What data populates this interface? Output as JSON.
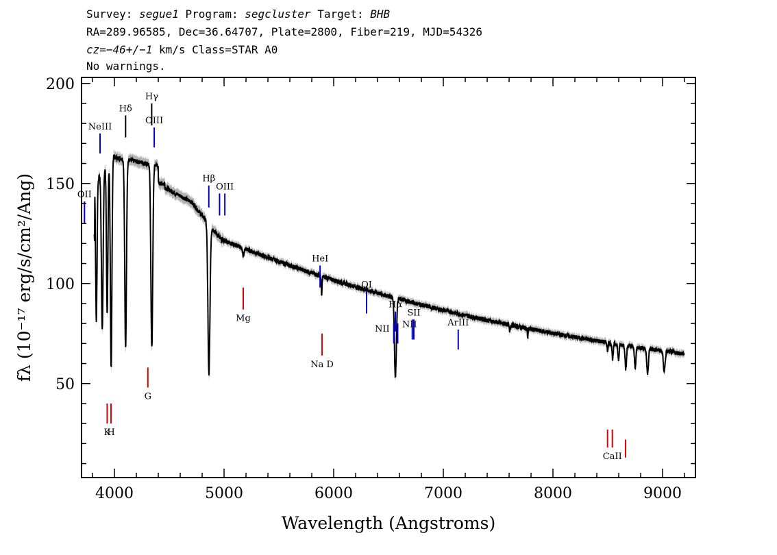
{
  "header": {
    "survey_label": "Survey:",
    "survey": "segue1",
    "program_label": "Program:",
    "program": "segcluster",
    "target_label": "Target:",
    "target": "BHB",
    "line2": "RA=289.96585, Dec=36.64707, Plate=2800, Fiber=219, MJD=54326",
    "cz_label": "cz=",
    "cz_value": "−46+/−1",
    "cz_rest": " km/s Class=STAR A0",
    "line4": "No warnings."
  },
  "chart_data": {
    "type": "line",
    "xlabel": "Wavelength (Angstroms)",
    "ylabel": "fλ (10⁻¹⁷ erg/s/cm²/Ang)",
    "xlim": [
      3700,
      9300
    ],
    "ylim": [
      3,
      203
    ],
    "x_ticks": [
      4000,
      5000,
      6000,
      7000,
      8000,
      9000
    ],
    "y_ticks": [
      50,
      100,
      150,
      200
    ],
    "line_color": "#000000",
    "error_color": "#b0b0b0",
    "emission_color": "#0000cc",
    "absorption_color": "#dd0000",
    "absorption_features": [
      {
        "center": 3835,
        "depth": 70,
        "width": 9
      },
      {
        "center": 3889,
        "depth": 78,
        "width": 11
      },
      {
        "center": 3934,
        "depth": 75,
        "width": 9
      },
      {
        "center": 3970,
        "depth": 105,
        "width": 10
      },
      {
        "center": 4102,
        "depth": 95,
        "width": 11
      },
      {
        "center": 4341,
        "depth": 92,
        "width": 12
      },
      {
        "center": 4862,
        "depth": 75,
        "width": 13
      },
      {
        "center": 5175,
        "depth": 4,
        "width": 10
      },
      {
        "center": 5890,
        "depth": 10,
        "width": 5
      },
      {
        "center": 6563,
        "depth": 40,
        "width": 12
      },
      {
        "center": 7605,
        "depth": 3,
        "width": 6
      },
      {
        "center": 7770,
        "depth": 5,
        "width": 4
      },
      {
        "center": 8498,
        "depth": 4,
        "width": 6
      },
      {
        "center": 8545,
        "depth": 8,
        "width": 8
      },
      {
        "center": 8598,
        "depth": 8,
        "width": 8
      },
      {
        "center": 8665,
        "depth": 12,
        "width": 9
      },
      {
        "center": 8750,
        "depth": 10,
        "width": 10
      },
      {
        "center": 8863,
        "depth": 12,
        "width": 11
      },
      {
        "center": 9015,
        "depth": 10,
        "width": 12
      }
    ],
    "line_markers": [
      {
        "label": "OII",
        "x": 3727,
        "y_top": 141,
        "y_bottom": 130,
        "color": "#0000cc",
        "label_pos": "above"
      },
      {
        "label": "NeIII",
        "x": 3869,
        "y_top": 175,
        "y_bottom": 165,
        "color": "#0000cc",
        "label_pos": "above"
      },
      {
        "label": "Hδ",
        "x": 4102,
        "y_top": 184,
        "y_bottom": 173,
        "color": "#000000",
        "label_pos": "above"
      },
      {
        "label": "Hγ",
        "x": 4340,
        "y_top": 190,
        "y_bottom": 179,
        "color": "#000000",
        "label_pos": "above"
      },
      {
        "label": "OIII",
        "x": 4363,
        "y_top": 178,
        "y_bottom": 168,
        "color": "#0000cc",
        "label_pos": "above"
      },
      {
        "label": "Hβ",
        "x": 4861,
        "y_top": 149,
        "y_bottom": 138,
        "color": "#0000cc",
        "label_pos": "above"
      },
      {
        "label": "",
        "x": 4959,
        "y_top": 145,
        "y_bottom": 134,
        "color": "#0000cc",
        "label_pos": "none"
      },
      {
        "label": "OIII",
        "x": 5007,
        "y_top": 145,
        "y_bottom": 134,
        "color": "#0000cc",
        "label_pos": "above"
      },
      {
        "label": "HeI",
        "x": 5876,
        "y_top": 109,
        "y_bottom": 98,
        "color": "#0000cc",
        "label_pos": "above"
      },
      {
        "label": "OI",
        "x": 6300,
        "y_top": 96,
        "y_bottom": 85,
        "color": "#0000cc",
        "label_pos": "above"
      },
      {
        "label": "NII",
        "x": 6548,
        "y_top": 80,
        "y_bottom": 70,
        "color": "#0000cc",
        "label_pos": "left"
      },
      {
        "label": "Hα",
        "x": 6563,
        "y_top": 86,
        "y_bottom": 76,
        "color": "#0000cc",
        "label_pos": "above"
      },
      {
        "label": "",
        "x": 6584,
        "y_top": 80,
        "y_bottom": 70,
        "color": "#0000cc",
        "label_pos": "none"
      },
      {
        "label": "NII",
        "x": 6717,
        "y_top": 82,
        "y_bottom": 72,
        "color": "#0000cc",
        "label_pos": "overlap"
      },
      {
        "label": "SII",
        "x": 6731,
        "y_top": 82,
        "y_bottom": 72,
        "color": "#0000cc",
        "label_pos": "above"
      },
      {
        "label": "ArIII",
        "x": 7136,
        "y_top": 77,
        "y_bottom": 67,
        "color": "#0000cc",
        "label_pos": "above"
      },
      {
        "label": "K",
        "x": 3934,
        "y_top": 40,
        "y_bottom": 30,
        "color": "#dd0000",
        "label_pos": "below"
      },
      {
        "label": "H",
        "x": 3969,
        "y_top": 40,
        "y_bottom": 30,
        "color": "#dd0000",
        "label_pos": "below"
      },
      {
        "label": "G",
        "x": 4305,
        "y_top": 58,
        "y_bottom": 48,
        "color": "#dd0000",
        "label_pos": "below"
      },
      {
        "label": "Mg",
        "x": 5175,
        "y_top": 98,
        "y_bottom": 87,
        "color": "#dd0000",
        "label_pos": "below"
      },
      {
        "label": "Na D",
        "x": 5894,
        "y_top": 75,
        "y_bottom": 64,
        "color": "#dd0000",
        "label_pos": "below"
      },
      {
        "label": "",
        "x": 8498,
        "y_top": 27,
        "y_bottom": 18,
        "color": "#dd0000",
        "label_pos": "none"
      },
      {
        "label": "CaII",
        "x": 8542,
        "y_top": 27,
        "y_bottom": 18,
        "color": "#dd0000",
        "label_pos": "below"
      },
      {
        "label": "",
        "x": 8662,
        "y_top": 22,
        "y_bottom": 13,
        "color": "#dd0000",
        "label_pos": "none"
      }
    ]
  }
}
